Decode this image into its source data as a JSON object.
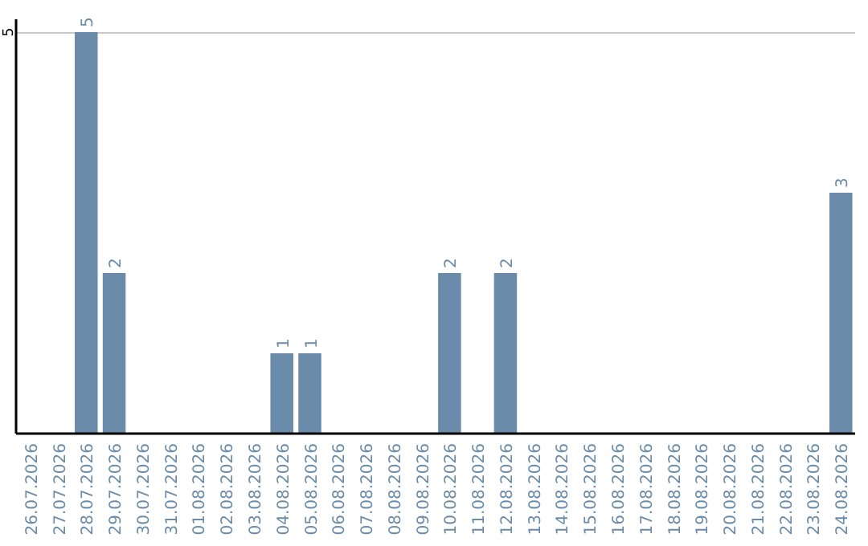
{
  "chart_data": {
    "type": "bar",
    "categories": [
      "26.07.2026",
      "27.07.2026",
      "28.07.2026",
      "29.07.2026",
      "30.07.2026",
      "31.07.2026",
      "01.08.2026",
      "02.08.2026",
      "03.08.2026",
      "04.08.2026",
      "05.08.2026",
      "06.08.2026",
      "07.08.2026",
      "08.08.2026",
      "09.08.2026",
      "10.08.2026",
      "11.08.2026",
      "12.08.2026",
      "13.08.2026",
      "14.08.2026",
      "15.08.2026",
      "16.08.2026",
      "17.08.2026",
      "18.08.2026",
      "19.08.2026",
      "20.08.2026",
      "21.08.2026",
      "22.08.2026",
      "23.08.2026",
      "24.08.2026"
    ],
    "values": [
      0,
      0,
      5,
      2,
      0,
      0,
      0,
      0,
      0,
      1,
      1,
      0,
      0,
      0,
      0,
      2,
      0,
      2,
      0,
      0,
      0,
      0,
      0,
      0,
      0,
      0,
      0,
      0,
      0,
      3
    ],
    "value_labels": [
      null,
      null,
      "5",
      "2",
      null,
      null,
      null,
      null,
      null,
      "1",
      "1",
      null,
      null,
      null,
      null,
      "2",
      null,
      "2",
      null,
      null,
      null,
      null,
      null,
      null,
      null,
      null,
      null,
      null,
      null,
      "3"
    ],
    "color": "#6a8caa",
    "ylim": [
      0,
      5
    ],
    "yticks": [
      5
    ],
    "ref_lines": [
      {
        "axis": "y",
        "value": 5,
        "color": "#c8c8c8"
      }
    ]
  }
}
